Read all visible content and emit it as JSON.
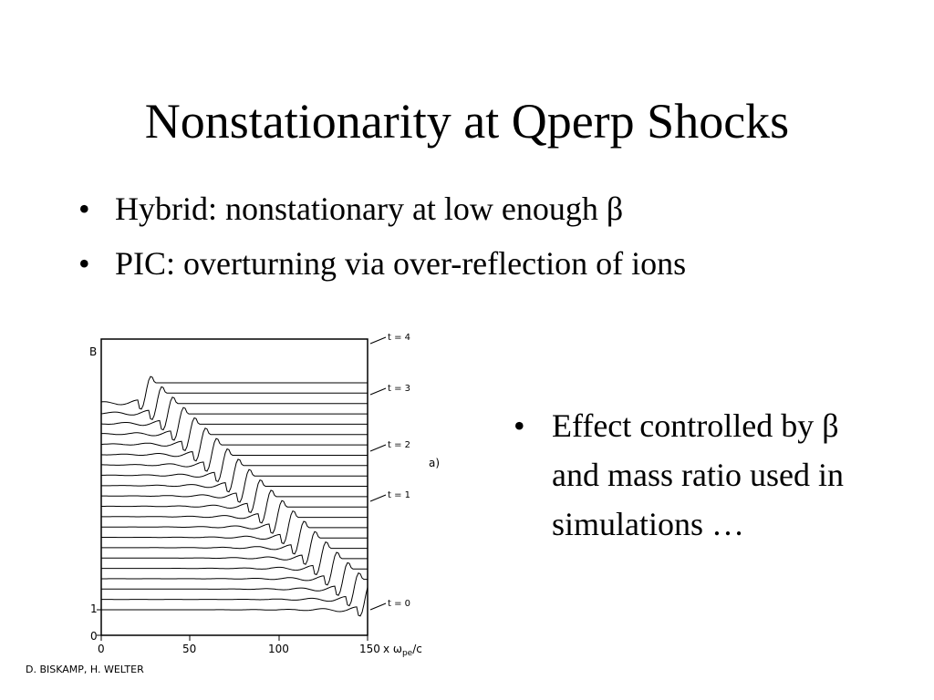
{
  "slide": {
    "title": "Nonstationarity at Qperp Shocks",
    "bullets": [
      "Hybrid: nonstationary at low enough β",
      "PIC: overturning via over-reflection of ions"
    ],
    "side_bullet": "Effect controlled by β and mass ratio used in simulations …",
    "bullet_char": "•"
  },
  "figure": {
    "y_axis_label": "B",
    "y_ticks": [
      "1",
      "0"
    ],
    "x_ticks": [
      "0",
      "50",
      "100",
      "150"
    ],
    "x_axis_label": "x ωpe/c",
    "x_label_main": "x ω",
    "x_label_sub": "pe",
    "x_label_tail": "/c",
    "time_labels": [
      "t = 4",
      "t = 3",
      "t = 2",
      "t = 1",
      "t = 0"
    ],
    "panel_label": "a)",
    "credit": "D. BISKAMP, H. WELTER"
  }
}
